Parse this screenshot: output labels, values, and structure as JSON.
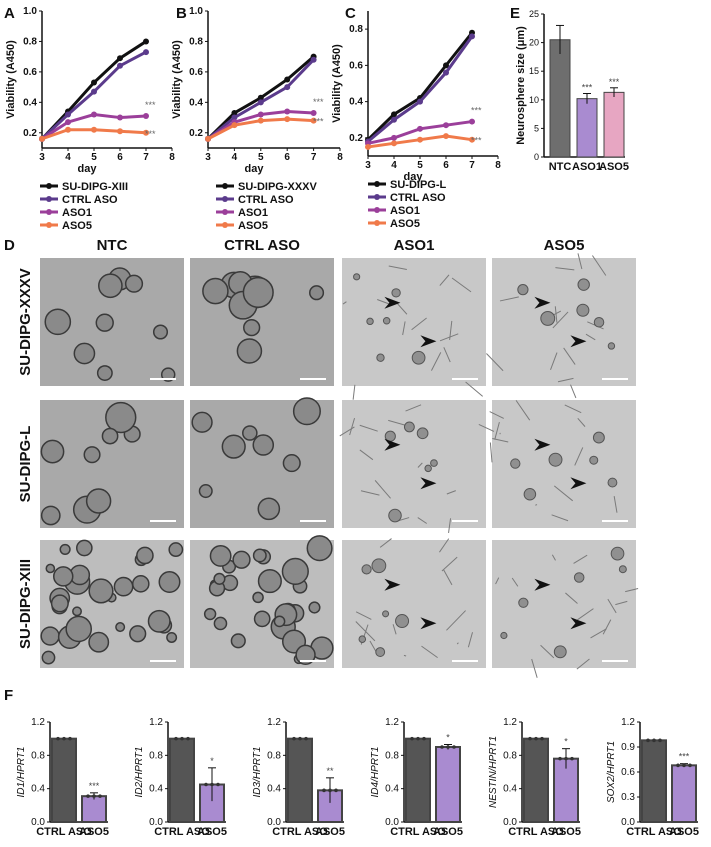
{
  "panels": {
    "A": "A",
    "B": "B",
    "C": "C",
    "D": "D",
    "E": "E",
    "F": "F"
  },
  "viability_charts": [
    {
      "panel": "A",
      "xlabel": "day",
      "ylabel": "Viability (A450)",
      "xticks": [
        "3",
        "4",
        "5",
        "6",
        "7",
        "8"
      ],
      "yticks": [
        "0.2",
        "0.4",
        "0.6",
        "0.8",
        "1.0"
      ],
      "xlim": [
        3,
        8
      ],
      "ylim": [
        0.1,
        1.0
      ],
      "series": [
        {
          "name": "SU-DIPG-XIII",
          "color": "#111111",
          "x": [
            3,
            4,
            5,
            6,
            7
          ],
          "y": [
            0.16,
            0.34,
            0.53,
            0.69,
            0.8
          ]
        },
        {
          "name": "CTRL ASO",
          "color": "#5b3b8c",
          "x": [
            3,
            4,
            5,
            6,
            7
          ],
          "y": [
            0.16,
            0.32,
            0.47,
            0.64,
            0.73
          ]
        },
        {
          "name": "ASO1",
          "color": "#9b3f9a",
          "x": [
            3,
            4,
            5,
            6,
            7
          ],
          "y": [
            0.16,
            0.27,
            0.32,
            0.3,
            0.31
          ]
        },
        {
          "name": "ASO5",
          "color": "#f07a4a",
          "x": [
            3,
            4,
            5,
            6,
            7
          ],
          "y": [
            0.16,
            0.22,
            0.22,
            0.21,
            0.2
          ]
        }
      ],
      "annotations": [
        "***",
        "***"
      ]
    },
    {
      "panel": "B",
      "xlabel": "day",
      "ylabel": "Viability (A450)",
      "xticks": [
        "3",
        "4",
        "5",
        "6",
        "7",
        "8"
      ],
      "yticks": [
        "0.2",
        "0.4",
        "0.6",
        "0.8",
        "1.0"
      ],
      "xlim": [
        3,
        8
      ],
      "ylim": [
        0.1,
        1.0
      ],
      "series": [
        {
          "name": "SU-DIPG-XXXV",
          "color": "#111111",
          "x": [
            3,
            4,
            5,
            6,
            7
          ],
          "y": [
            0.16,
            0.33,
            0.43,
            0.55,
            0.7
          ]
        },
        {
          "name": "CTRL ASO",
          "color": "#5b3b8c",
          "x": [
            3,
            4,
            5,
            6,
            7
          ],
          "y": [
            0.16,
            0.3,
            0.4,
            0.5,
            0.68
          ]
        },
        {
          "name": "ASO1",
          "color": "#9b3f9a",
          "x": [
            3,
            4,
            5,
            6,
            7
          ],
          "y": [
            0.16,
            0.27,
            0.32,
            0.34,
            0.33
          ]
        },
        {
          "name": "ASO5",
          "color": "#f07a4a",
          "x": [
            3,
            4,
            5,
            6,
            7
          ],
          "y": [
            0.16,
            0.25,
            0.28,
            0.29,
            0.28
          ]
        }
      ],
      "annotations": [
        "***",
        "***"
      ]
    },
    {
      "panel": "C",
      "xlabel": "day",
      "ylabel": "Viability (A450)",
      "xticks": [
        "3",
        "4",
        "5",
        "6",
        "7",
        "8"
      ],
      "yticks": [
        "0.2",
        "0.4",
        "0.6",
        "0.8"
      ],
      "xlim": [
        3,
        8
      ],
      "ylim": [
        0.1,
        0.9
      ],
      "series": [
        {
          "name": "SU-DIPG-L",
          "color": "#111111",
          "x": [
            3,
            4,
            5,
            6,
            7
          ],
          "y": [
            0.19,
            0.33,
            0.42,
            0.6,
            0.78
          ]
        },
        {
          "name": "CTRL ASO",
          "color": "#5b3b8c",
          "x": [
            3,
            4,
            5,
            6,
            7
          ],
          "y": [
            0.18,
            0.3,
            0.4,
            0.56,
            0.76
          ]
        },
        {
          "name": "ASO1",
          "color": "#9b3f9a",
          "x": [
            3,
            4,
            5,
            6,
            7
          ],
          "y": [
            0.17,
            0.2,
            0.25,
            0.27,
            0.29
          ]
        },
        {
          "name": "ASO5",
          "color": "#f07a4a",
          "x": [
            3,
            4,
            5,
            6,
            7
          ],
          "y": [
            0.15,
            0.17,
            0.19,
            0.21,
            0.19
          ]
        }
      ],
      "annotations": [
        "***",
        "***"
      ]
    }
  ],
  "neurosphere_chart": {
    "panel": "E",
    "ylabel": "Neurosphere size (μm)",
    "yticks": [
      "0",
      "5",
      "10",
      "15",
      "20",
      "25"
    ],
    "ylim": [
      0,
      25
    ],
    "categories": [
      "NTC",
      "ASO1",
      "ASO5"
    ],
    "values": [
      20.5,
      10.2,
      11.3
    ],
    "errors": [
      2.5,
      0.9,
      0.8
    ],
    "colors": [
      "#6e6e6e",
      "#a98bd0",
      "#e7a6c2"
    ],
    "annotations": [
      "",
      "***",
      "***"
    ]
  },
  "micrographs": {
    "columns": [
      "NTC",
      "CTRL ASO",
      "ASO1",
      "ASO5"
    ],
    "rows": [
      "SU-DIPG-XXXV",
      "SU-DIPG-L",
      "SU-DIPG-XIII"
    ]
  },
  "qpcr_charts": [
    {
      "ylabel": "ID1/HPRT1",
      "yticks": [
        "0.0",
        "0.4",
        "0.8",
        "1.2"
      ],
      "ylim": [
        0,
        1.2
      ],
      "categories": [
        "CTRL ASO",
        "ASO5"
      ],
      "values": [
        1.0,
        0.31
      ],
      "errors": [
        0,
        0.04
      ],
      "annotation": "***"
    },
    {
      "ylabel": "ID2/HPRT1",
      "yticks": [
        "0.0",
        "0.4",
        "0.8",
        "1.2"
      ],
      "ylim": [
        0,
        1.2
      ],
      "categories": [
        "CTRL ASO",
        "ASO5"
      ],
      "values": [
        1.0,
        0.45
      ],
      "errors": [
        0,
        0.2
      ],
      "annotation": "*"
    },
    {
      "ylabel": "ID3/HPRT1",
      "yticks": [
        "0.0",
        "0.4",
        "0.8",
        "1.2"
      ],
      "ylim": [
        0,
        1.2
      ],
      "categories": [
        "CTRL ASO",
        "ASO5"
      ],
      "values": [
        1.0,
        0.38
      ],
      "errors": [
        0,
        0.15
      ],
      "annotation": "**"
    },
    {
      "ylabel": "ID4/HPRT1",
      "yticks": [
        "0.0",
        "0.4",
        "0.8",
        "1.2"
      ],
      "ylim": [
        0,
        1.2
      ],
      "categories": [
        "CTRL ASO",
        "ASO5"
      ],
      "values": [
        1.0,
        0.9
      ],
      "errors": [
        0,
        0.03
      ],
      "annotation": "*"
    },
    {
      "ylabel": "NESTIN/HPRT1",
      "yticks": [
        "0.0",
        "0.4",
        "0.8",
        "1.2"
      ],
      "ylim": [
        0,
        1.2
      ],
      "categories": [
        "CTRL ASO",
        "ASO5"
      ],
      "values": [
        1.0,
        0.76
      ],
      "errors": [
        0,
        0.12
      ],
      "annotation": "*"
    },
    {
      "ylabel": "SOX2/HPRT1",
      "yticks": [
        "0.0",
        "0.3",
        "0.6",
        "0.9",
        "1.2"
      ],
      "ylim": [
        0,
        1.2
      ],
      "categories": [
        "CTRL ASO",
        "ASO5"
      ],
      "values": [
        0.98,
        0.68
      ],
      "errors": [
        0,
        0.02
      ],
      "annotation": "***"
    }
  ],
  "colors": {
    "ctrl_bar": "#555555",
    "aso_bar": "#a98bd0"
  }
}
